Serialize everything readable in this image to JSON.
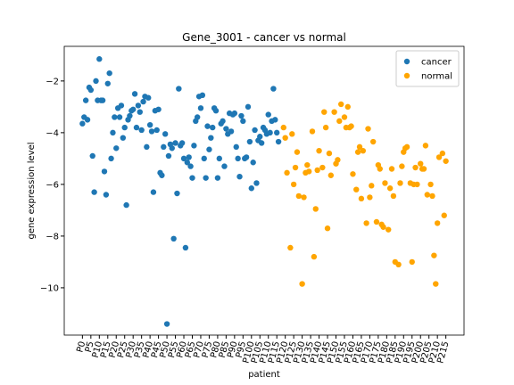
{
  "chart_data": {
    "type": "scatter",
    "title": "Gene_3001 - cancer vs normal",
    "xlabel": "patient",
    "ylabel": "gene expression level",
    "legend": "upper right",
    "xlim": [
      -10.75,
      225.75
    ],
    "ylim": [
      -11.83,
      -0.66
    ],
    "yticks": [
      {
        "value": -2,
        "label": "−2"
      },
      {
        "value": -4,
        "label": "−4"
      },
      {
        "value": -6,
        "label": "−6"
      },
      {
        "value": -8,
        "label": "−8"
      },
      {
        "value": -10,
        "label": "−10"
      }
    ],
    "xticks": [
      {
        "value": 0,
        "label": "P0"
      },
      {
        "value": 5,
        "label": "P5"
      },
      {
        "value": 10,
        "label": "P10"
      },
      {
        "value": 15,
        "label": "P15"
      },
      {
        "value": 20,
        "label": "P20"
      },
      {
        "value": 25,
        "label": "P25"
      },
      {
        "value": 30,
        "label": "P30"
      },
      {
        "value": 35,
        "label": "P35"
      },
      {
        "value": 40,
        "label": "P40"
      },
      {
        "value": 45,
        "label": "P45"
      },
      {
        "value": 50,
        "label": "P50"
      },
      {
        "value": 55,
        "label": "P55"
      },
      {
        "value": 60,
        "label": "P60"
      },
      {
        "value": 65,
        "label": "P65"
      },
      {
        "value": 70,
        "label": "P70"
      },
      {
        "value": 75,
        "label": "P75"
      },
      {
        "value": 80,
        "label": "P80"
      },
      {
        "value": 85,
        "label": "P85"
      },
      {
        "value": 90,
        "label": "P90"
      },
      {
        "value": 95,
        "label": "P95"
      },
      {
        "value": 100,
        "label": "P100"
      },
      {
        "value": 105,
        "label": "P105"
      },
      {
        "value": 110,
        "label": "P110"
      },
      {
        "value": 115,
        "label": "P115"
      },
      {
        "value": 120,
        "label": "P120"
      },
      {
        "value": 125,
        "label": "P125"
      },
      {
        "value": 130,
        "label": "P130"
      },
      {
        "value": 135,
        "label": "P135"
      },
      {
        "value": 140,
        "label": "P140"
      },
      {
        "value": 145,
        "label": "P145"
      },
      {
        "value": 150,
        "label": "P150"
      },
      {
        "value": 155,
        "label": "P155"
      },
      {
        "value": 160,
        "label": "P160"
      },
      {
        "value": 165,
        "label": "P165"
      },
      {
        "value": 170,
        "label": "P170"
      },
      {
        "value": 175,
        "label": "P175"
      },
      {
        "value": 180,
        "label": "P180"
      },
      {
        "value": 185,
        "label": "P185"
      },
      {
        "value": 190,
        "label": "P190"
      },
      {
        "value": 195,
        "label": "P195"
      },
      {
        "value": 200,
        "label": "P200"
      },
      {
        "value": 205,
        "label": "P205"
      },
      {
        "value": 210,
        "label": "P210"
      },
      {
        "value": 215,
        "label": "P215"
      }
    ],
    "series": [
      {
        "name": "cancer",
        "color": "#1f77b4",
        "x": [
          0,
          1,
          2,
          3,
          4,
          5,
          6,
          7,
          8,
          9,
          10,
          11,
          12,
          13,
          14,
          15,
          16,
          17,
          18,
          19,
          20,
          21,
          22,
          23,
          24,
          25,
          26,
          27,
          28,
          29,
          30,
          31,
          32,
          33,
          34,
          35,
          36,
          37,
          38,
          39,
          40,
          41,
          42,
          43,
          44,
          45,
          46,
          47,
          48,
          49,
          50,
          51,
          52,
          53,
          54,
          55,
          56,
          57,
          58,
          59,
          60,
          61,
          62,
          63,
          64,
          65,
          66,
          67,
          68,
          69,
          70,
          71,
          72,
          73,
          74,
          75,
          76,
          77,
          78,
          79,
          80,
          81,
          82,
          83,
          84,
          85,
          86,
          87,
          88,
          89,
          90,
          91,
          92,
          93,
          94,
          95,
          96,
          97,
          98,
          99,
          100,
          101,
          102,
          103,
          104,
          105,
          106,
          107,
          108,
          109,
          110,
          111,
          112,
          113,
          114,
          115,
          116
        ],
        "values": [
          -3.65,
          -3.4,
          -2.75,
          -3.5,
          -2.25,
          -2.35,
          -4.9,
          -6.3,
          -2.0,
          -2.75,
          -1.15,
          -2.75,
          -2.75,
          -5.5,
          -6.4,
          -2.1,
          -1.7,
          -5.0,
          -4.0,
          -3.4,
          -4.6,
          -3.05,
          -3.4,
          -2.95,
          -4.2,
          -3.8,
          -6.8,
          -3.5,
          -3.35,
          -3.15,
          -3.1,
          -2.5,
          -3.8,
          -2.95,
          -3.2,
          -3.9,
          -2.8,
          -2.6,
          -4.55,
          -2.65,
          -3.7,
          -3.95,
          -6.3,
          -3.15,
          -3.9,
          -3.1,
          -5.55,
          -5.65,
          -4.55,
          -4.05,
          -11.4,
          -4.9,
          -4.45,
          -4.6,
          -8.1,
          -4.4,
          -6.35,
          -2.3,
          -4.5,
          -4.4,
          -5.0,
          -8.45,
          -5.15,
          -4.95,
          -5.3,
          -5.75,
          -4.5,
          -3.55,
          -3.4,
          -2.6,
          -3.05,
          -2.55,
          -5.0,
          -5.75,
          -3.75,
          -4.65,
          -4.2,
          -3.8,
          -3.05,
          -3.15,
          -5.75,
          -5.0,
          -3.65,
          -3.55,
          -5.3,
          -3.85,
          -4.05,
          -3.25,
          -3.95,
          -3.3,
          -3.25,
          -4.55,
          -5.0,
          -5.7,
          -3.35,
          -3.55,
          -5.0,
          -4.95,
          -3.0,
          -4.35,
          -6.15,
          -5.15,
          -3.9,
          -5.95,
          -4.3,
          -4.15,
          -4.4,
          -3.8,
          -3.9,
          -4.05,
          -3.3,
          -4.0,
          -3.55,
          -2.3,
          -3.5,
          -4.0,
          -4.35
        ]
      },
      {
        "name": "normal",
        "color": "#ffa500",
        "x": [
          119,
          120,
          121,
          123,
          124,
          125,
          126,
          127,
          128,
          130,
          131,
          132,
          133,
          134,
          136,
          137,
          138,
          139,
          140,
          142,
          143,
          144,
          145,
          146,
          147,
          149,
          150,
          151,
          152,
          153,
          155,
          156,
          157,
          158,
          159,
          160,
          162,
          163,
          164,
          165,
          166,
          168,
          169,
          170,
          171,
          172,
          174,
          175,
          176,
          177,
          178,
          179,
          181,
          182,
          183,
          184,
          185,
          187,
          188,
          189,
          190,
          191,
          192,
          194,
          195,
          196,
          197,
          198,
          200,
          201,
          202,
          203,
          204,
          206,
          207,
          208,
          209,
          210,
          211,
          213,
          214,
          215
        ],
        "values": [
          -3.8,
          -4.2,
          -5.55,
          -8.45,
          -4.05,
          -6.0,
          -5.35,
          -4.75,
          -6.45,
          -9.85,
          -6.5,
          -5.55,
          -5.25,
          -5.5,
          -3.95,
          -8.8,
          -6.95,
          -5.45,
          -4.7,
          -5.35,
          -3.2,
          -3.8,
          -7.7,
          -4.8,
          -5.65,
          -3.2,
          -5.2,
          -5.05,
          -3.55,
          -2.9,
          -3.4,
          -3.8,
          -3.0,
          -3.8,
          -3.75,
          -5.6,
          -6.2,
          -4.75,
          -4.55,
          -6.55,
          -4.7,
          -7.5,
          -3.85,
          -6.5,
          -6.05,
          -4.35,
          -7.45,
          -5.25,
          -5.4,
          -7.55,
          -7.65,
          -5.95,
          -7.75,
          -6.15,
          -5.4,
          -6.45,
          -9.0,
          -9.1,
          -5.95,
          -5.3,
          -4.75,
          -4.6,
          -4.55,
          -5.95,
          -9.0,
          -6.0,
          -5.35,
          -6.0,
          -5.2,
          -5.4,
          -5.4,
          -4.5,
          -6.4,
          -6.0,
          -6.45,
          -8.75,
          -9.85,
          -7.5,
          -4.95,
          -4.8,
          -7.2,
          -5.1
        ]
      }
    ]
  }
}
